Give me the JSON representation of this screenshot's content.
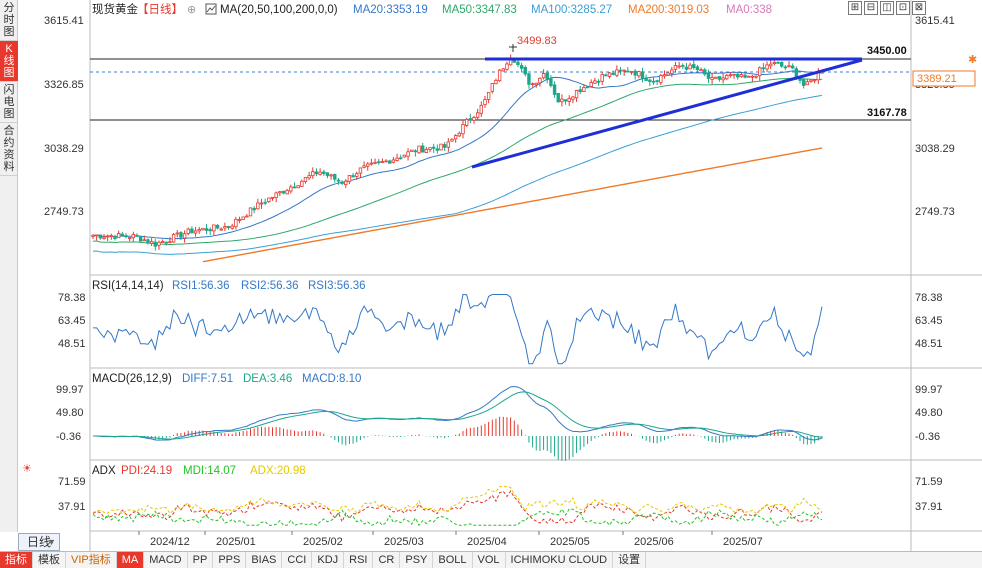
{
  "side_tabs": [
    "分时图",
    "K线图",
    "闪电图",
    "合约资料"
  ],
  "active_side_tab": 1,
  "toolbar_icons": [
    "⊞",
    "⊟",
    "◫",
    "⊡",
    "⊠"
  ],
  "header": {
    "symbol": "现货黄金",
    "period": "【日线】",
    "ma_params": "MA(20,50,100,200,0,0)",
    "ma20": "MA20:3353.19",
    "ma50": "MA50:3347.83",
    "ma100": "MA100:3285.27",
    "ma200": "MA200:3019.03",
    "ma0": "MA0:338"
  },
  "colors": {
    "up": "#e8372c",
    "down": "#1aa88a",
    "ma20": "#3478c8",
    "ma50": "#2ea86a",
    "ma100": "#3a9fd6",
    "ma200": "#f07a2a",
    "trend": "#1e2fd8",
    "ma0": "#d67ab8"
  },
  "price_axis": {
    "ticks": [
      "3615.41",
      "3326.85",
      "3038.29",
      "2749.73"
    ]
  },
  "annotations": {
    "high_label": "3499.83",
    "resistance_label": "3450.00",
    "support_label": "3167.78",
    "current_price": "3389.21"
  },
  "rsi": {
    "title": "RSI(14,14,14)",
    "rsi1": "RSI1:56.36",
    "rsi2": "RSI2:56.36",
    "rsi3": "RSI3:56.36",
    "ticks": [
      "78.38",
      "63.45",
      "48.51"
    ]
  },
  "macd": {
    "title": "MACD(26,12,9)",
    "diff": "DIFF:7.51",
    "dea": "DEA:3.46",
    "macd": "MACD:8.10",
    "ticks": [
      "99.97",
      "49.80",
      "-0.36"
    ]
  },
  "adx": {
    "title": "ADX",
    "pdi": "PDI:24.19",
    "mdi": "MDI:14.07",
    "adxv": "ADX:20.98",
    "ticks": [
      "71.59",
      "37.91"
    ]
  },
  "x_axis": [
    "2024/12",
    "2025/01",
    "2025/02",
    "2025/03",
    "2025/04",
    "2025/05",
    "2025/06",
    "2025/07"
  ],
  "period_tab": "日线",
  "bottom_tabs": [
    "指标",
    "模板",
    "VIP指标",
    "MA",
    "MACD",
    "PP",
    "PPS",
    "BIAS",
    "CCI",
    "KDJ",
    "RSI",
    "CR",
    "PSY",
    "BOLL",
    "VOL",
    "ICHIMOKU CLOUD",
    "设置"
  ]
}
